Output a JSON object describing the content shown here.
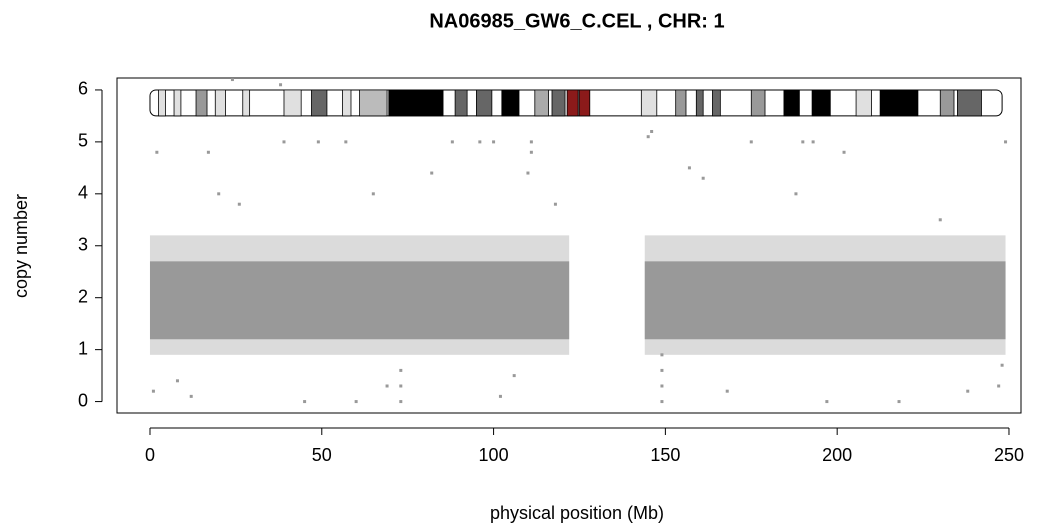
{
  "chart_data": {
    "type": "scatter",
    "title": "NA06985_GW6_C.CEL , CHR: 1",
    "xlabel": "physical position (Mb)",
    "ylabel": "copy number",
    "xlim": [
      -9.6,
      253.5
    ],
    "ylim": [
      -0.22,
      6.23
    ],
    "xticks": [
      0,
      50,
      100,
      150,
      200,
      250
    ],
    "yticks": [
      0,
      1,
      2,
      3,
      4,
      5,
      6
    ],
    "color": "#999999",
    "dense_regions": [
      {
        "x": [
          0,
          122
        ],
        "y": [
          0.9,
          3.2
        ],
        "opacity": 0.35
      },
      {
        "x": [
          144,
          249
        ],
        "y": [
          0.9,
          3.2
        ],
        "opacity": 0.35
      },
      {
        "x": [
          0,
          122
        ],
        "y": [
          1.2,
          2.7
        ],
        "opacity": 1
      },
      {
        "x": [
          144,
          249
        ],
        "y": [
          1.2,
          2.7
        ],
        "opacity": 1
      }
    ],
    "x": [
      1,
      2,
      8,
      12,
      17,
      20,
      24,
      26,
      38,
      39,
      45,
      49,
      57,
      60,
      65,
      69,
      73,
      73,
      73,
      82,
      88,
      96,
      100,
      102,
      106,
      110,
      111,
      111,
      118,
      145,
      146,
      149,
      149,
      149,
      149,
      157,
      161,
      168,
      175,
      188,
      190,
      193,
      197,
      202,
      218,
      230,
      238,
      247,
      249,
      248
    ],
    "y": [
      0.2,
      4.8,
      0.4,
      0.1,
      4.8,
      4.0,
      6.2,
      3.8,
      6.1,
      5.0,
      0.0,
      5.0,
      5.0,
      0.0,
      4.0,
      0.3,
      0.0,
      0.3,
      0.6,
      4.4,
      5.0,
      5.0,
      5.0,
      0.1,
      0.5,
      4.4,
      4.8,
      5.0,
      3.8,
      5.1,
      5.2,
      0.0,
      0.3,
      0.6,
      0.9,
      4.5,
      4.3,
      0.2,
      5.0,
      4.0,
      5.0,
      5.0,
      0.0,
      4.8,
      0.0,
      3.5,
      0.2,
      0.3,
      5.0,
      0.7
    ],
    "ideogram": {
      "y": [
        5.5,
        6.0
      ],
      "start": 0,
      "end": 248,
      "outline": "#000000",
      "bands": [
        {
          "start": 2.5,
          "end": 4.5,
          "color": "#e0e0e0"
        },
        {
          "start": 7,
          "end": 9,
          "color": "#e0e0e0"
        },
        {
          "start": 13.4,
          "end": 16.6,
          "color": "#999999"
        },
        {
          "start": 19,
          "end": 22,
          "color": "#e0e0e0"
        },
        {
          "start": 27,
          "end": 29,
          "color": "#e0e0e0"
        },
        {
          "start": 39,
          "end": 44,
          "color": "#e0e0e0"
        },
        {
          "start": 47,
          "end": 51.5,
          "color": "#666666"
        },
        {
          "start": 56,
          "end": 58.5,
          "color": "#e0e0e0"
        },
        {
          "start": 61,
          "end": 69,
          "color": "#bbbbbb"
        },
        {
          "start": 69.5,
          "end": 85.3,
          "color": "#000000"
        },
        {
          "start": 88.8,
          "end": 92.3,
          "color": "#666666"
        },
        {
          "start": 95,
          "end": 99.5,
          "color": "#666666"
        },
        {
          "start": 102.4,
          "end": 107.4,
          "color": "#000000"
        },
        {
          "start": 112,
          "end": 116,
          "color": "#aaaaaa"
        },
        {
          "start": 117,
          "end": 120.8,
          "color": "#666666"
        },
        {
          "start": 121.4,
          "end": 124.6,
          "color": "#8b1a1a"
        },
        {
          "start": 124.9,
          "end": 128,
          "color": "#8b1a1a"
        },
        {
          "start": 143,
          "end": 147.5,
          "color": "#e0e0e0"
        },
        {
          "start": 153,
          "end": 156,
          "color": "#999999"
        },
        {
          "start": 159,
          "end": 161,
          "color": "#666666"
        },
        {
          "start": 163.7,
          "end": 166,
          "color": "#666666"
        },
        {
          "start": 175,
          "end": 179,
          "color": "#999999"
        },
        {
          "start": 184.5,
          "end": 189,
          "color": "#000000"
        },
        {
          "start": 192.7,
          "end": 198,
          "color": "#000000"
        },
        {
          "start": 205.5,
          "end": 210,
          "color": "#e0e0e0"
        },
        {
          "start": 212.5,
          "end": 223.5,
          "color": "#000000"
        },
        {
          "start": 230,
          "end": 234,
          "color": "#999999"
        },
        {
          "start": 235,
          "end": 242,
          "color": "#666666"
        }
      ]
    }
  }
}
